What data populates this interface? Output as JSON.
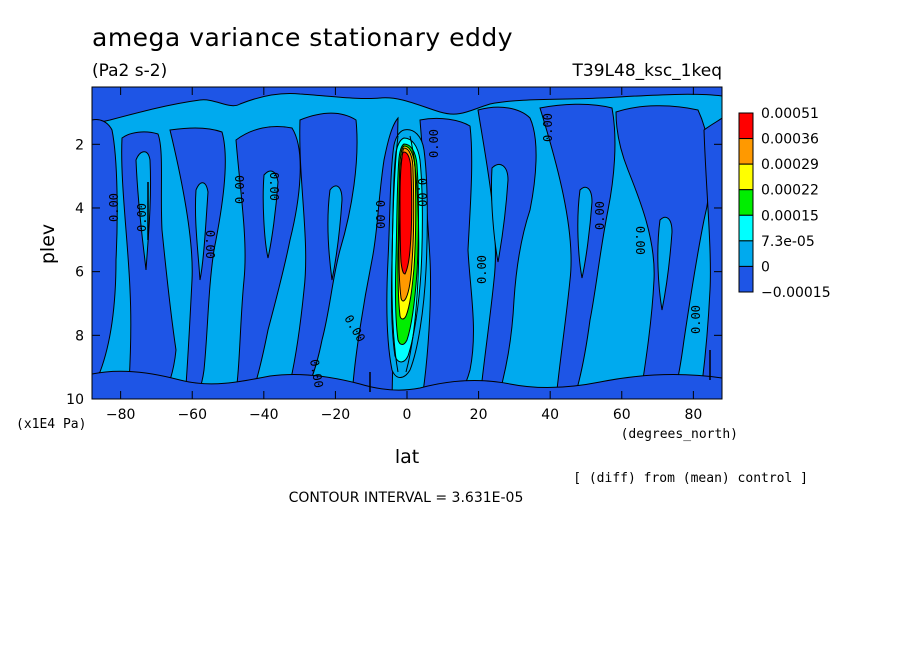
{
  "chart_data": {
    "type": "heatmap",
    "title": "amega variance stationary eddy",
    "subtitle": "(Pa2 s-2)",
    "experiment": "T39L48_ksc_1keq",
    "xlabel": "lat",
    "xunit": "(degrees_north)",
    "ylabel": "plev",
    "yunit": "(x1E4 Pa)",
    "xlim": [
      -88,
      88
    ],
    "ylim": [
      10,
      0.2
    ],
    "x_ticks": [
      -80,
      -60,
      -40,
      -20,
      0,
      20,
      40,
      60,
      80
    ],
    "y_ticks": [
      2,
      4,
      6,
      8,
      10
    ],
    "x_tick_labels": [
      "-80",
      "-60",
      "-40",
      "-20",
      "0",
      "20",
      "40",
      "60",
      "80"
    ],
    "y_tick_labels": [
      "2",
      "4",
      "6",
      "8",
      "10"
    ],
    "legend": {
      "position": "right",
      "levels": [
        "0.00051",
        "0.00036",
        "0.00029",
        "0.00022",
        "0.00015",
        "7.3e-05",
        "0",
        "-0.00015"
      ],
      "colors": [
        "#ff0000",
        "#ff9900",
        "#ffff00",
        "#00ee00",
        "#00ffff",
        "#00aaee",
        "#1e55e6"
      ]
    },
    "contour_labels": [
      "0.00"
    ],
    "note": "[ (diff) from (mean) control ]",
    "contour_interval": "CONTOUR INTERVAL = 3.631E-05",
    "features": [
      {
        "lat": 0,
        "plev_top": 2.0,
        "plev_bottom": 9.2,
        "peak": "0.00051",
        "peak_plev": 4.0
      }
    ]
  }
}
